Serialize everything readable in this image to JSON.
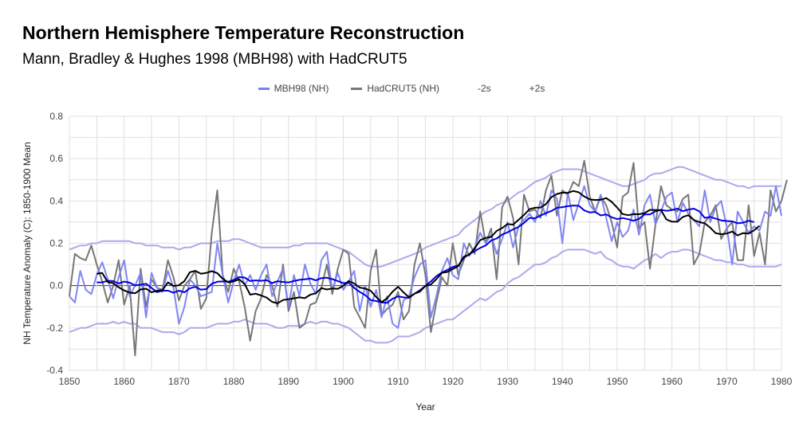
{
  "chart_data": {
    "type": "line",
    "title": "Northern Hemisphere Temperature Reconstruction",
    "subtitle": "Mann, Bradley & Hughes 1998 (MBH98) with HadCRUT5",
    "xlabel": "Year",
    "ylabel": "NH Temperature Anomaly (C): 1850-1900 Mean",
    "xlim": [
      1850,
      1980
    ],
    "ylim": [
      -0.4,
      0.8
    ],
    "x_ticks": [
      "1850",
      "1860",
      "1870",
      "1880",
      "1890",
      "1900",
      "1910",
      "1920",
      "1930",
      "1940",
      "1950",
      "1960",
      "1970",
      "1980"
    ],
    "y_ticks": [
      "-0.4",
      "-0.2",
      "0.0",
      "0.2",
      "0.4",
      "0.6",
      "0.8"
    ],
    "legend": [
      "MBH98 (NH)",
      "HadCRUT5 (NH)",
      "-2s",
      "+2s"
    ],
    "colors": {
      "mbh98": "#7a7ff2",
      "hadcrut": "#777777",
      "sigma": "#aaaaee",
      "mbh_smooth": "#0000dd",
      "had_smooth": "#000000",
      "grid": "#e0e0e0",
      "zero": "#333333"
    },
    "series": [
      {
        "name": "MBH98 (NH)",
        "x_start": 1850,
        "values": [
          -0.05,
          -0.08,
          0.07,
          -0.02,
          -0.04,
          0.05,
          0.11,
          0.03,
          -0.06,
          0.04,
          0.12,
          -0.05,
          0.0,
          0.06,
          -0.15,
          0.06,
          -0.01,
          -0.03,
          0.07,
          -0.01,
          -0.18,
          -0.1,
          0.03,
          0.0,
          -0.05,
          -0.04,
          -0.03,
          0.2,
          0.05,
          -0.08,
          0.02,
          0.1,
          0.0,
          0.05,
          -0.02,
          0.05,
          0.1,
          -0.05,
          0.02,
          0.08,
          -0.1,
          0.05,
          -0.05,
          0.1,
          0.01,
          -0.04,
          0.12,
          0.16,
          -0.02,
          0.06,
          -0.02,
          0.02,
          0.07,
          -0.12,
          0.0,
          -0.1,
          -0.02,
          -0.15,
          -0.05,
          -0.18,
          -0.2,
          -0.07,
          -0.05,
          0.04,
          0.1,
          0.12,
          -0.15,
          -0.05,
          0.07,
          0.13,
          0.05,
          0.03,
          0.2,
          0.14,
          0.18,
          0.25,
          0.2,
          0.24,
          0.15,
          0.22,
          0.3,
          0.18,
          0.28,
          0.31,
          0.34,
          0.3,
          0.4,
          0.33,
          0.45,
          0.41,
          0.2,
          0.44,
          0.31,
          0.39,
          0.47,
          0.38,
          0.35,
          0.43,
          0.32,
          0.21,
          0.3,
          0.23,
          0.26,
          0.36,
          0.24,
          0.38,
          0.43,
          0.29,
          0.35,
          0.42,
          0.44,
          0.3,
          0.39,
          0.34,
          0.31,
          0.28,
          0.45,
          0.3,
          0.37,
          0.4,
          0.28,
          0.1,
          0.35,
          0.3,
          0.25,
          0.28,
          0.26,
          0.35,
          0.33,
          0.47,
          0.33
        ]
      },
      {
        "name": "HadCRUT5 (NH)",
        "x_start": 1850,
        "values": [
          -0.05,
          0.15,
          0.13,
          0.12,
          0.19,
          0.1,
          0.02,
          -0.08,
          0.0,
          0.12,
          -0.09,
          0.0,
          -0.33,
          0.08,
          -0.1,
          0.03,
          -0.01,
          -0.02,
          0.12,
          0.04,
          -0.07,
          0.0,
          0.03,
          0.07,
          -0.11,
          -0.06,
          0.25,
          0.45,
          0.05,
          -0.03,
          0.08,
          0.02,
          -0.1,
          -0.26,
          -0.12,
          -0.06,
          0.05,
          0.0,
          -0.1,
          0.1,
          -0.12,
          -0.03,
          -0.2,
          -0.18,
          -0.09,
          -0.08,
          -0.01,
          0.1,
          -0.04,
          0.08,
          0.17,
          0.15,
          -0.1,
          -0.15,
          -0.2,
          0.07,
          0.17,
          -0.14,
          -0.11,
          -0.09,
          -0.03,
          -0.16,
          -0.12,
          0.1,
          0.2,
          0.05,
          -0.22,
          -0.08,
          0.04,
          0.0,
          0.2,
          0.05,
          0.12,
          0.2,
          0.15,
          0.35,
          0.2,
          0.27,
          0.03,
          0.37,
          0.42,
          0.32,
          0.1,
          0.43,
          0.35,
          0.36,
          0.32,
          0.45,
          0.52,
          0.33,
          0.45,
          0.43,
          0.49,
          0.47,
          0.59,
          0.42,
          0.35,
          0.42,
          0.38,
          0.3,
          0.18,
          0.42,
          0.44,
          0.58,
          0.27,
          0.3,
          0.08,
          0.29,
          0.47,
          0.38,
          0.36,
          0.35,
          0.41,
          0.43,
          0.1,
          0.15,
          0.3,
          0.33,
          0.38,
          0.22,
          0.27,
          0.3,
          0.12,
          0.12,
          0.38,
          0.14,
          0.25,
          0.1,
          0.45,
          0.35,
          0.4,
          0.5
        ]
      },
      {
        "name": "-2s",
        "x_start": 1850,
        "values": [
          -0.22,
          -0.21,
          -0.2,
          -0.2,
          -0.19,
          -0.18,
          -0.18,
          -0.18,
          -0.17,
          -0.18,
          -0.17,
          -0.18,
          -0.18,
          -0.2,
          -0.2,
          -0.2,
          -0.21,
          -0.22,
          -0.22,
          -0.22,
          -0.23,
          -0.22,
          -0.2,
          -0.2,
          -0.2,
          -0.2,
          -0.19,
          -0.18,
          -0.18,
          -0.18,
          -0.17,
          -0.17,
          -0.16,
          -0.17,
          -0.18,
          -0.18,
          -0.18,
          -0.19,
          -0.2,
          -0.2,
          -0.19,
          -0.19,
          -0.19,
          -0.18,
          -0.17,
          -0.18,
          -0.17,
          -0.17,
          -0.18,
          -0.18,
          -0.19,
          -0.2,
          -0.22,
          -0.24,
          -0.26,
          -0.26,
          -0.27,
          -0.27,
          -0.27,
          -0.26,
          -0.24,
          -0.24,
          -0.24,
          -0.23,
          -0.22,
          -0.2,
          -0.19,
          -0.18,
          -0.17,
          -0.16,
          -0.16,
          -0.14,
          -0.12,
          -0.1,
          -0.08,
          -0.06,
          -0.07,
          -0.05,
          -0.03,
          -0.02,
          0.01,
          0.03,
          0.04,
          0.06,
          0.08,
          0.1,
          0.1,
          0.11,
          0.13,
          0.14,
          0.16,
          0.17,
          0.17,
          0.17,
          0.17,
          0.16,
          0.15,
          0.16,
          0.13,
          0.12,
          0.1,
          0.09,
          0.09,
          0.08,
          0.1,
          0.12,
          0.13,
          0.15,
          0.13,
          0.15,
          0.16,
          0.16,
          0.17,
          0.17,
          0.16,
          0.15,
          0.14,
          0.13,
          0.12,
          0.12,
          0.11,
          0.11,
          0.1,
          0.1,
          0.09,
          0.09,
          0.09,
          0.09,
          0.09,
          0.09,
          0.1
        ]
      },
      {
        "name": "+2s",
        "x_start": 1850,
        "values": [
          0.17,
          0.18,
          0.19,
          0.19,
          0.2,
          0.2,
          0.21,
          0.21,
          0.21,
          0.21,
          0.21,
          0.21,
          0.2,
          0.2,
          0.19,
          0.19,
          0.19,
          0.18,
          0.18,
          0.18,
          0.17,
          0.18,
          0.18,
          0.19,
          0.2,
          0.2,
          0.2,
          0.21,
          0.21,
          0.21,
          0.22,
          0.22,
          0.21,
          0.2,
          0.19,
          0.18,
          0.18,
          0.18,
          0.18,
          0.18,
          0.18,
          0.19,
          0.19,
          0.2,
          0.2,
          0.2,
          0.2,
          0.2,
          0.19,
          0.18,
          0.17,
          0.16,
          0.14,
          0.12,
          0.1,
          0.09,
          0.09,
          0.09,
          0.1,
          0.11,
          0.12,
          0.13,
          0.14,
          0.15,
          0.16,
          0.18,
          0.19,
          0.2,
          0.21,
          0.22,
          0.23,
          0.24,
          0.27,
          0.29,
          0.31,
          0.33,
          0.35,
          0.36,
          0.38,
          0.39,
          0.4,
          0.42,
          0.44,
          0.45,
          0.47,
          0.49,
          0.5,
          0.51,
          0.53,
          0.54,
          0.55,
          0.55,
          0.55,
          0.55,
          0.54,
          0.53,
          0.52,
          0.51,
          0.5,
          0.49,
          0.48,
          0.47,
          0.47,
          0.48,
          0.49,
          0.5,
          0.52,
          0.53,
          0.53,
          0.54,
          0.55,
          0.56,
          0.56,
          0.55,
          0.54,
          0.53,
          0.52,
          0.51,
          0.5,
          0.5,
          0.49,
          0.48,
          0.47,
          0.47,
          0.46,
          0.47,
          0.47,
          0.47,
          0.47,
          0.47,
          0.47
        ]
      }
    ]
  }
}
